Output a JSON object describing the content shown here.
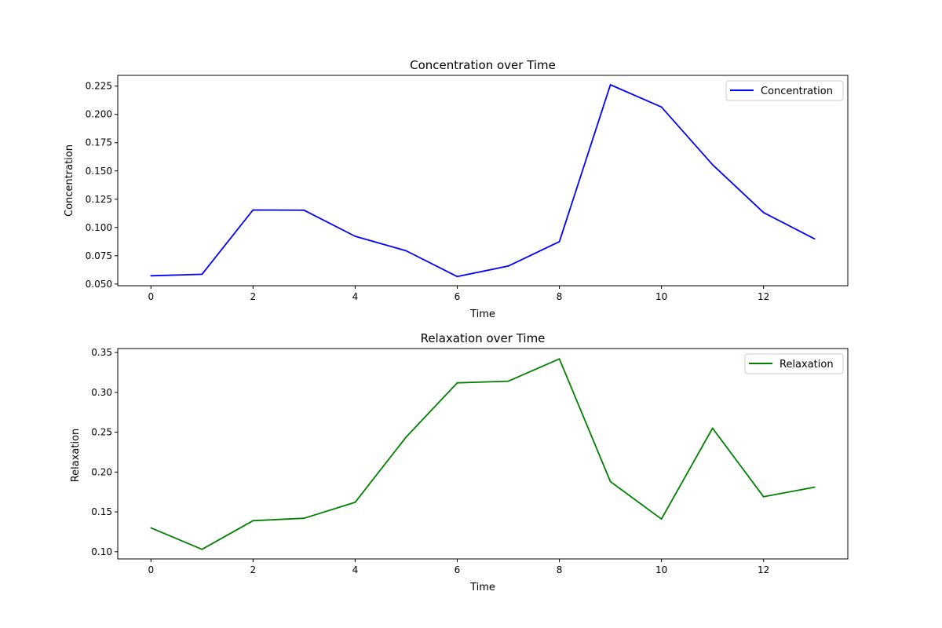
{
  "chart_data": [
    {
      "type": "line",
      "title": "Concentration over Time",
      "xlabel": "Time",
      "ylabel": "Concentration",
      "xlim": [
        -0.65,
        13.65
      ],
      "ylim": [
        0.0485,
        0.2345
      ],
      "xticks": [
        0,
        2,
        4,
        6,
        8,
        10,
        12
      ],
      "xtick_labels": [
        "0",
        "2",
        "4",
        "6",
        "8",
        "10",
        "12"
      ],
      "yticks": [
        0.05,
        0.075,
        0.1,
        0.125,
        0.15,
        0.175,
        0.2,
        0.225
      ],
      "ytick_labels": [
        "0.050",
        "0.075",
        "0.100",
        "0.125",
        "0.150",
        "0.175",
        "0.200",
        "0.225"
      ],
      "grid": false,
      "legend_position": "top-right",
      "series": [
        {
          "name": "Concentration",
          "color": "#0000ff",
          "x": [
            0,
            1,
            2,
            3,
            4,
            5,
            6,
            7,
            8,
            9,
            10,
            11,
            12,
            13
          ],
          "values": [
            0.0573,
            0.0586,
            0.1155,
            0.1153,
            0.0922,
            0.0794,
            0.0566,
            0.0659,
            0.0875,
            0.2262,
            0.2065,
            0.1555,
            0.1132,
            0.0899
          ]
        }
      ]
    },
    {
      "type": "line",
      "title": "Relaxation over Time",
      "xlabel": "Time",
      "ylabel": "Relaxation",
      "xlim": [
        -0.65,
        13.65
      ],
      "ylim": [
        0.091,
        0.355
      ],
      "xticks": [
        0,
        2,
        4,
        6,
        8,
        10,
        12
      ],
      "xtick_labels": [
        "0",
        "2",
        "4",
        "6",
        "8",
        "10",
        "12"
      ],
      "yticks": [
        0.1,
        0.15,
        0.2,
        0.25,
        0.3,
        0.35
      ],
      "ytick_labels": [
        "0.10",
        "0.15",
        "0.20",
        "0.25",
        "0.30",
        "0.35"
      ],
      "grid": false,
      "legend_position": "top-right",
      "series": [
        {
          "name": "Relaxation",
          "color": "#008000",
          "x": [
            0,
            1,
            2,
            3,
            4,
            5,
            6,
            7,
            8,
            9,
            10,
            11,
            12,
            13
          ],
          "values": [
            0.13,
            0.103,
            0.139,
            0.142,
            0.162,
            0.244,
            0.312,
            0.314,
            0.342,
            0.188,
            0.141,
            0.255,
            0.169,
            0.181
          ]
        }
      ]
    }
  ]
}
